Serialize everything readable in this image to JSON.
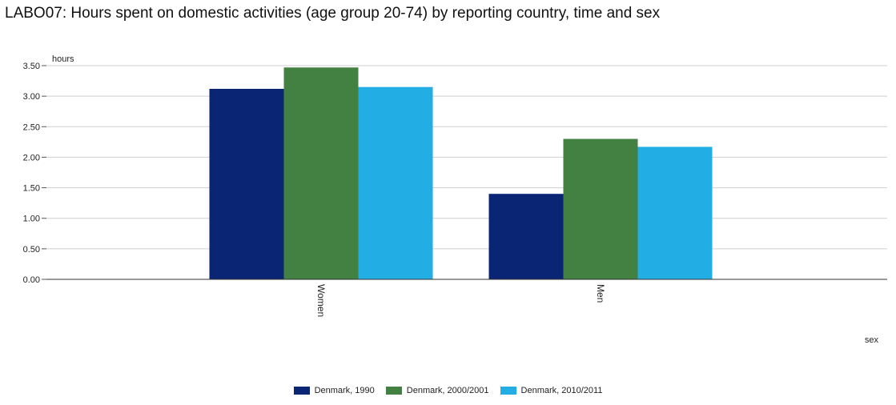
{
  "chart_data": {
    "type": "bar",
    "title": "LABO07: Hours spent on domestic activities (age group 20-74) by reporting country, time and sex",
    "ylabel": "hours",
    "xlabel": "sex",
    "categories": [
      "Women",
      "Men"
    ],
    "series": [
      {
        "name": "Denmark, 1990",
        "color": "#0b2575",
        "values": [
          3.12,
          1.4
        ]
      },
      {
        "name": "Denmark, 2000/2001",
        "color": "#438143",
        "values": [
          3.47,
          2.3
        ]
      },
      {
        "name": "Denmark, 2010/2011",
        "color": "#22ade4",
        "values": [
          3.15,
          2.17
        ]
      }
    ],
    "ylim": [
      0,
      3.5
    ],
    "yticks": [
      "0.00",
      "0.50",
      "1.00",
      "1.50",
      "2.00",
      "2.50",
      "3.00",
      "3.50"
    ],
    "grid": true,
    "legend_position": "bottom"
  }
}
